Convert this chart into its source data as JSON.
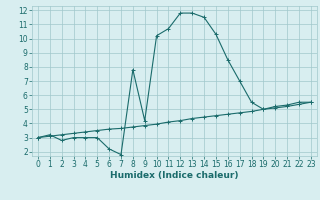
{
  "xlabel": "Humidex (Indice chaleur)",
  "ylabel": "",
  "bg_color": "#d8eef0",
  "grid_color": "#a0c8cc",
  "line_color": "#1a6b6b",
  "xlim": [
    -0.5,
    23.5
  ],
  "ylim": [
    1.7,
    12.3
  ],
  "xticks": [
    0,
    1,
    2,
    3,
    4,
    5,
    6,
    7,
    8,
    9,
    10,
    11,
    12,
    13,
    14,
    15,
    16,
    17,
    18,
    19,
    20,
    21,
    22,
    23
  ],
  "yticks": [
    2,
    3,
    4,
    5,
    6,
    7,
    8,
    9,
    10,
    11,
    12
  ],
  "line1_x": [
    0,
    1,
    2,
    3,
    4,
    5,
    6,
    7,
    8,
    9,
    10,
    11,
    12,
    13,
    14,
    15,
    16,
    17,
    18,
    19,
    20,
    21,
    22,
    23
  ],
  "line1_y": [
    3.0,
    3.2,
    2.8,
    3.0,
    3.0,
    3.0,
    2.2,
    1.8,
    7.8,
    4.2,
    10.2,
    10.7,
    11.8,
    11.8,
    11.5,
    10.3,
    8.5,
    7.0,
    5.5,
    5.0,
    5.2,
    5.3,
    5.5,
    5.5
  ],
  "line2_x": [
    0,
    1,
    2,
    3,
    4,
    5,
    6,
    7,
    8,
    9,
    10,
    11,
    12,
    13,
    14,
    15,
    16,
    17,
    18,
    19,
    20,
    21,
    22,
    23
  ],
  "line2_y": [
    3.0,
    3.1,
    3.2,
    3.3,
    3.4,
    3.5,
    3.6,
    3.65,
    3.75,
    3.85,
    3.95,
    4.1,
    4.2,
    4.35,
    4.45,
    4.55,
    4.65,
    4.75,
    4.85,
    5.0,
    5.1,
    5.2,
    5.35,
    5.5
  ],
  "tick_fontsize": 5.5,
  "xlabel_fontsize": 6.5,
  "xlabel_fontweight": "bold"
}
